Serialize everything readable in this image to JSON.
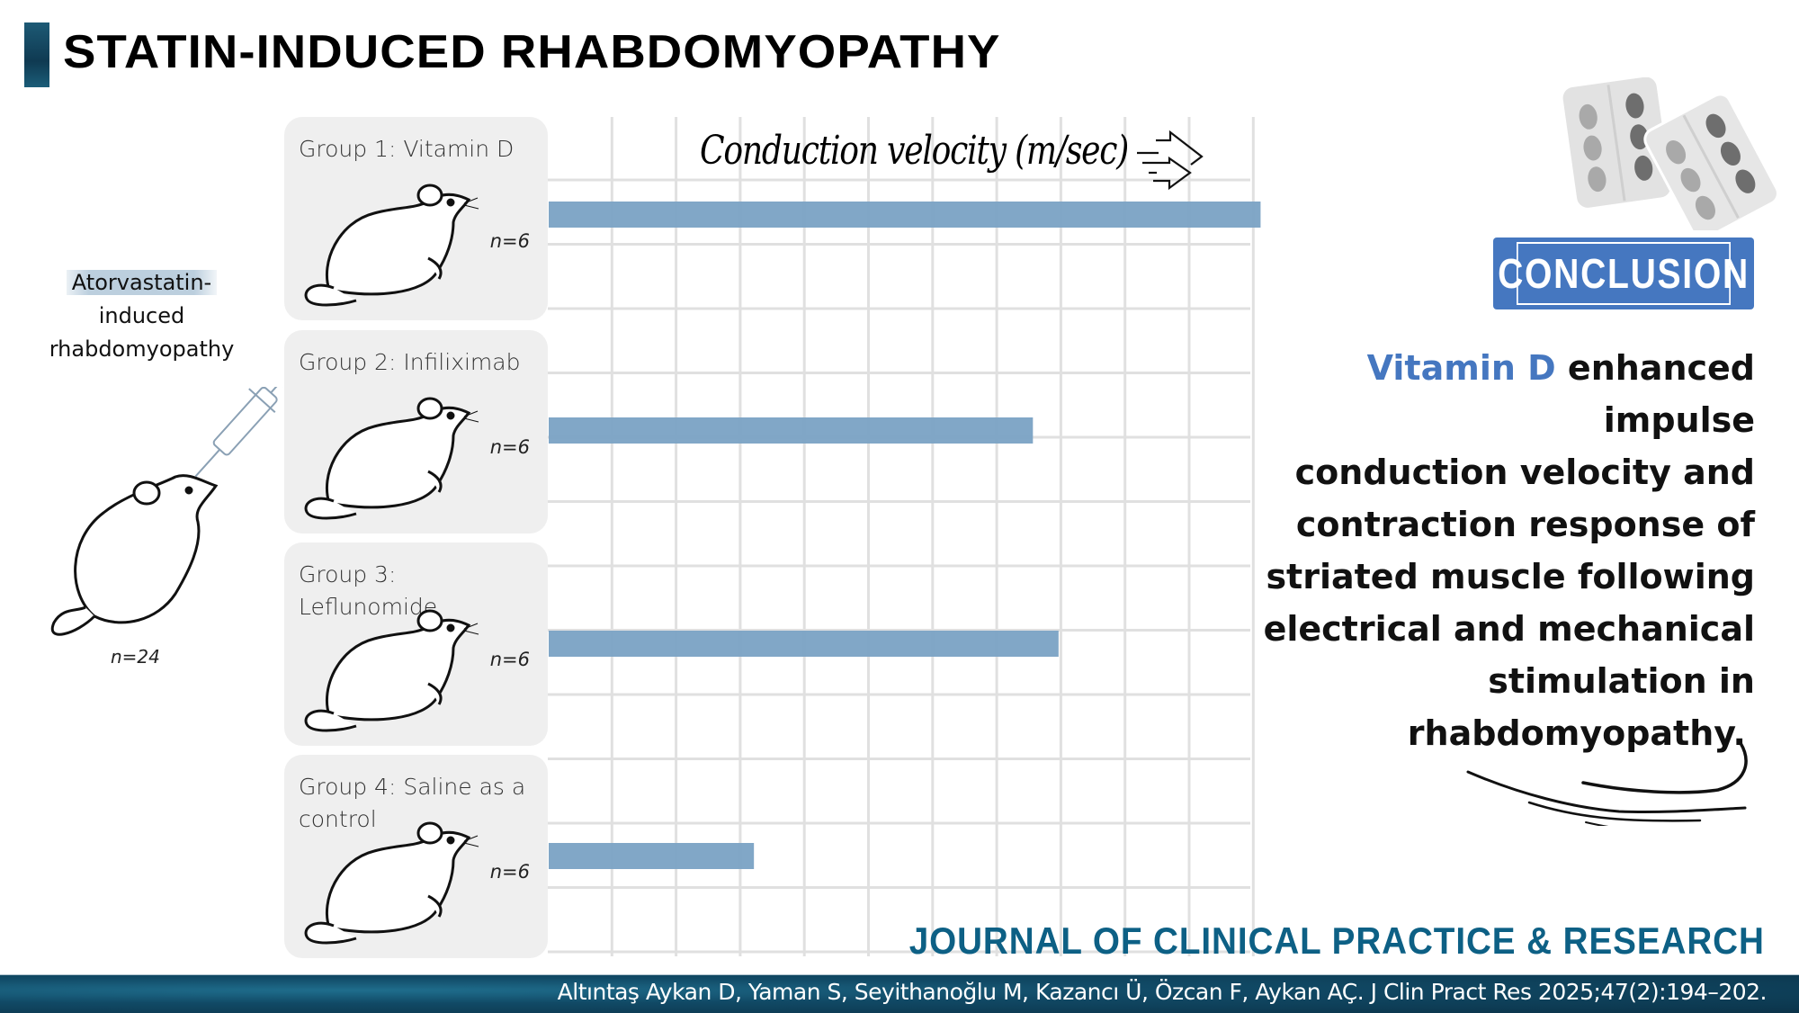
{
  "title": "STATIN-INDUCED RHABDOMYOPATHY",
  "model": {
    "label_highlight": "Atorvastatin-",
    "label_rest_1": "induced",
    "label_rest_2": "rhabdomyopathy",
    "n": "n=24",
    "icons": [
      "rat-icon",
      "syringe-icon"
    ]
  },
  "groups": [
    {
      "label": "Group 1: Vitamin D",
      "n": "n=6"
    },
    {
      "label": "Group 2: Infiliximab",
      "n": "n=6"
    },
    {
      "label": "Group 3: Leflunomide",
      "n": "n=6"
    },
    {
      "label": "Group 4: Saline as a control",
      "n": "n=6"
    }
  ],
  "chart_data": {
    "type": "bar",
    "orientation": "horizontal",
    "title": "Conduction velocity (m/sec)",
    "xlabel": "Conduction velocity (m/sec)",
    "ylabel": "",
    "categories": [
      "Group 1: Vitamin D",
      "Group 2: Infiliximab",
      "Group 3: Leflunomide",
      "Group 4: Saline as a control"
    ],
    "values": [
      11.1,
      7.55,
      7.95,
      3.2
    ],
    "value_units": "relative (gridline units; no numeric axis shown)",
    "xlim": [
      0,
      11.1
    ],
    "grid": true,
    "tick_labels_shown": false,
    "bar_color": "#7aa2c4",
    "legend": "none"
  },
  "conclusion": {
    "badge": "CONCLUSION",
    "accent_text": "Vitamin D",
    "lines": [
      " enhanced impulse",
      "conduction velocity and",
      "contraction response of",
      "striated muscle following",
      "electrical and mechanical",
      "stimulation in",
      "rhabdomyopathy."
    ],
    "accent_color": "#4577c0"
  },
  "journal": "JOURNAL OF CLINICAL PRACTICE & RESEARCH",
  "citation": "Altıntaş Aykan D, Yaman S, Seyithanoğlu M, Kazancı Ü, Özcan  F, Aykan AÇ.  J Clin Pract Res 2025;47(2):194–202."
}
